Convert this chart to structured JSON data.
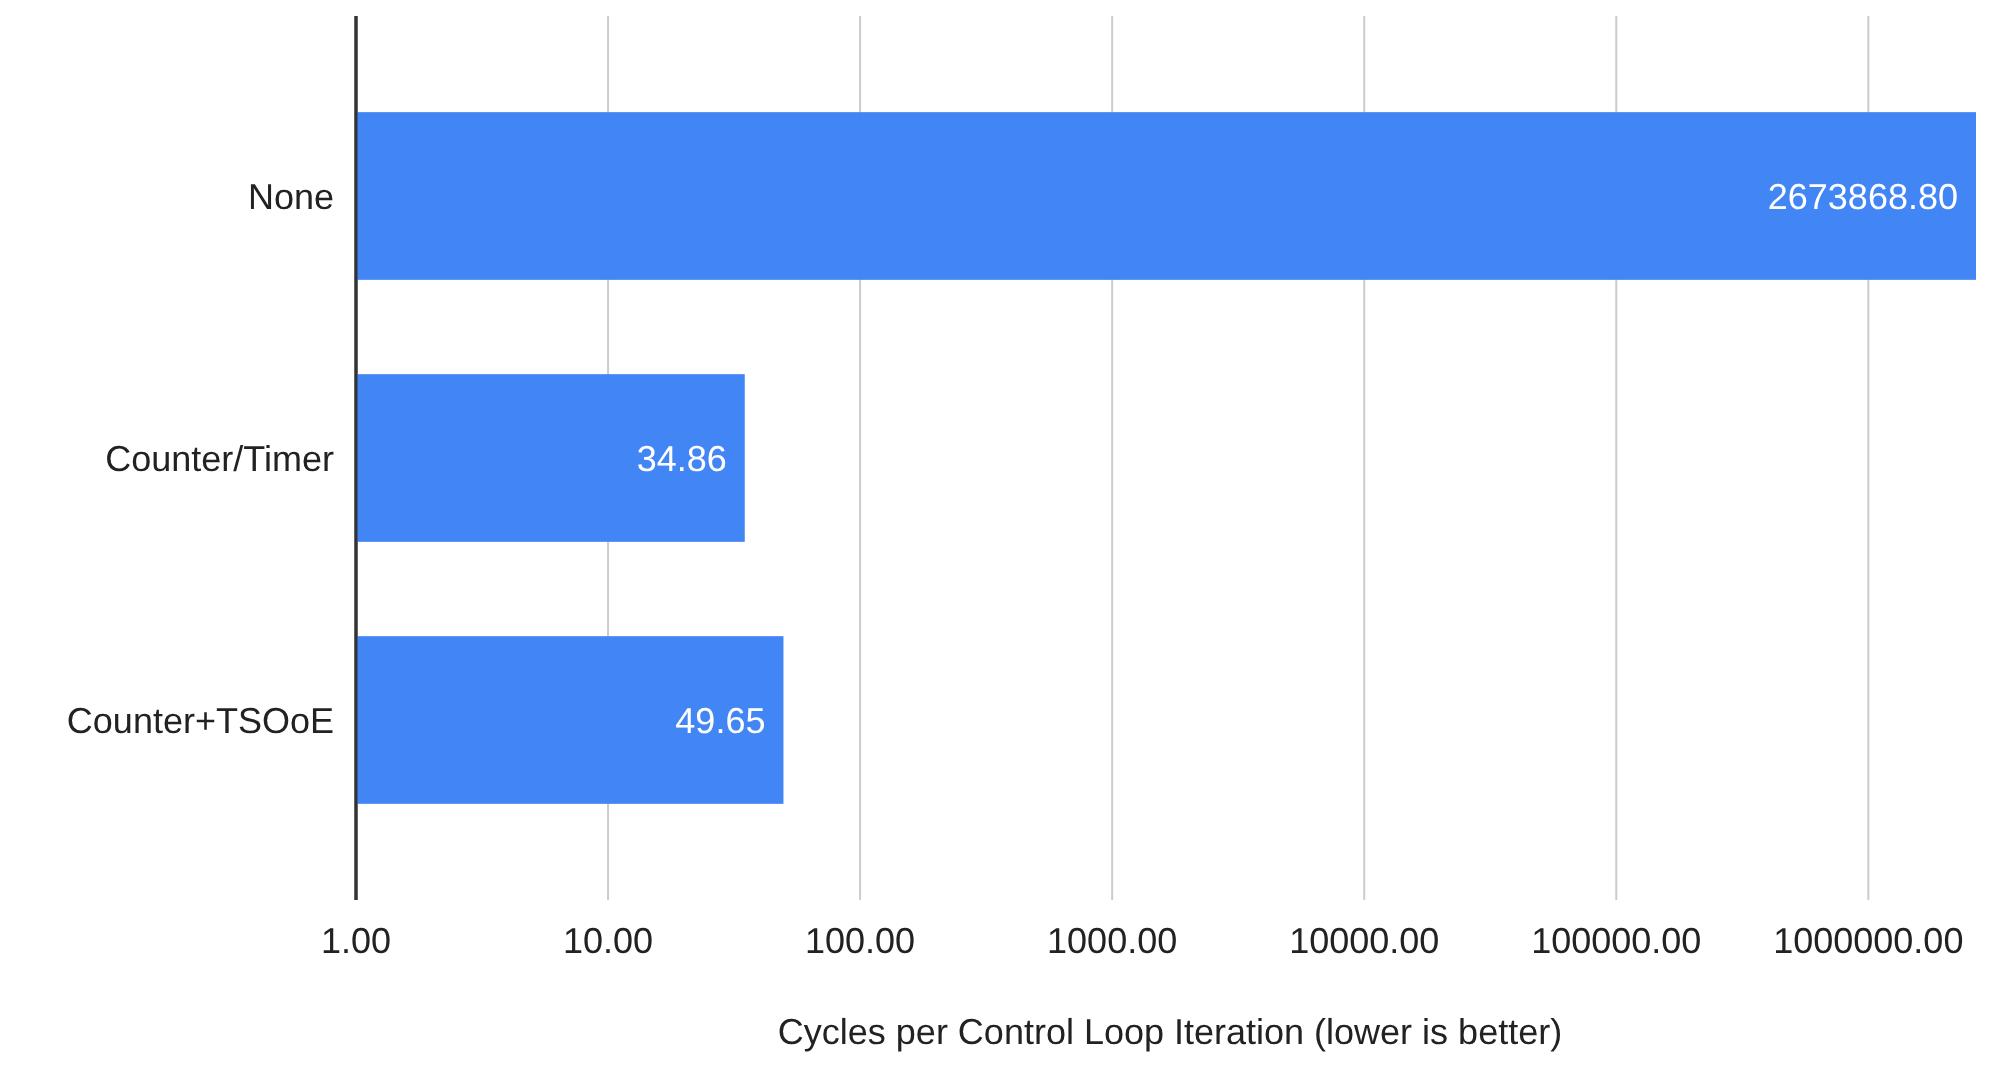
{
  "chart_data": {
    "type": "bar",
    "orientation": "horizontal",
    "log": "x",
    "xlabel": "Cycles per Control Loop Iteration (lower is better)",
    "categories": [
      "None",
      "Counter/Timer",
      "Counter+TSOoE"
    ],
    "values": [
      2673868.8,
      34.86,
      49.65
    ],
    "value_labels": [
      "2673868.80",
      "34.86",
      "49.65"
    ],
    "color": "#4285f4",
    "xlim": [
      1,
      2673868.8
    ],
    "xticks": [
      {
        "value": 1,
        "label": "1.00"
      },
      {
        "value": 10,
        "label": "10.00"
      },
      {
        "value": 100,
        "label": "100.00"
      },
      {
        "value": 1000,
        "label": "1000.00"
      },
      {
        "value": 10000,
        "label": "10000.00"
      },
      {
        "value": 100000,
        "label": "100000.00"
      },
      {
        "value": 1000000,
        "label": "1000000.00"
      }
    ],
    "grid": "x"
  }
}
